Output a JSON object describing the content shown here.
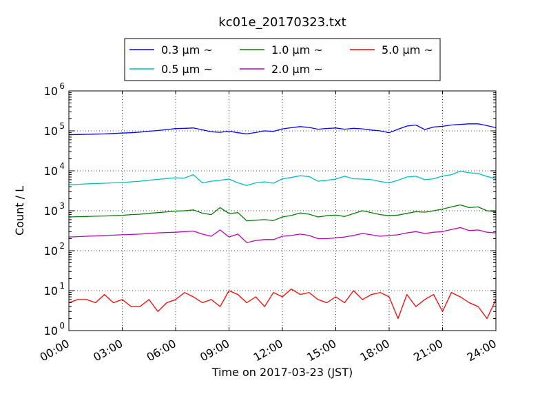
{
  "chart_data": {
    "type": "line",
    "title": "kc01e_20170323.txt",
    "xlabel": "Time on 2017-03-23 (JST)",
    "ylabel": "Count / L",
    "xlim": [
      "00:00",
      "24:00"
    ],
    "ylim": [
      1,
      1000000
    ],
    "yscale": "log",
    "grid": true,
    "legend_position": "top-center",
    "x_tick_labels": [
      "00:00",
      "03:00",
      "06:00",
      "09:00",
      "12:00",
      "15:00",
      "18:00",
      "21:00",
      "24:00"
    ],
    "y_tick_labels": [
      {
        "base": "10",
        "exp": "0"
      },
      {
        "base": "10",
        "exp": "1"
      },
      {
        "base": "10",
        "exp": "2"
      },
      {
        "base": "10",
        "exp": "3"
      },
      {
        "base": "10",
        "exp": "4"
      },
      {
        "base": "10",
        "exp": "5"
      },
      {
        "base": "10",
        "exp": "6"
      }
    ],
    "x_hours": [
      0,
      0.5,
      1,
      1.5,
      2,
      2.5,
      3,
      3.5,
      4,
      4.5,
      5,
      5.5,
      6,
      6.5,
      7,
      7.5,
      8,
      8.5,
      9,
      9.5,
      10,
      10.5,
      11,
      11.5,
      12,
      12.5,
      13,
      13.5,
      14,
      14.5,
      15,
      15.5,
      16,
      16.5,
      17,
      17.5,
      18,
      18.5,
      19,
      19.5,
      20,
      20.5,
      21,
      21.5,
      22,
      22.5,
      23,
      23.5,
      24
    ],
    "series": [
      {
        "name": "0.3 μm ~",
        "color": "#0000ff",
        "values": [
          80000,
          81000,
          82000,
          83000,
          84000,
          86000,
          88000,
          90000,
          93000,
          98000,
          102000,
          108000,
          114000,
          116000,
          118000,
          106000,
          95000,
          92000,
          98000,
          90000,
          84000,
          91000,
          100000,
          97000,
          112000,
          120000,
          128000,
          122000,
          110000,
          115000,
          118000,
          110000,
          116000,
          112000,
          105000,
          100000,
          90000,
          110000,
          132000,
          140000,
          108000,
          125000,
          130000,
          140000,
          145000,
          150000,
          150000,
          135000,
          120000
        ]
      },
      {
        "name": "0.5 μm ~",
        "color": "#00bfbf",
        "values": [
          4500,
          4600,
          4700,
          4800,
          4900,
          5000,
          5100,
          5300,
          5500,
          5800,
          6100,
          6400,
          6700,
          6600,
          8000,
          5000,
          5500,
          5800,
          6200,
          5000,
          4300,
          5000,
          5300,
          4900,
          6300,
          6800,
          7500,
          7200,
          5500,
          5800,
          6200,
          7300,
          6300,
          6200,
          6000,
          5400,
          5000,
          5800,
          7000,
          7300,
          6000,
          6300,
          7400,
          8000,
          9800,
          8900,
          8600,
          7200,
          6400
        ]
      },
      {
        "name": "1.0 μm ~",
        "color": "#008000",
        "values": [
          700,
          710,
          720,
          730,
          740,
          750,
          770,
          800,
          820,
          860,
          900,
          940,
          980,
          1000,
          1050,
          870,
          800,
          1200,
          850,
          900,
          560,
          580,
          600,
          570,
          700,
          760,
          880,
          820,
          700,
          750,
          780,
          720,
          850,
          1000,
          900,
          800,
          750,
          780,
          860,
          950,
          920,
          1000,
          1100,
          1250,
          1400,
          1200,
          1250,
          1000,
          950
        ]
      },
      {
        "name": "2.0 μm ~",
        "color": "#bf00bf",
        "values": [
          220,
          225,
          230,
          235,
          240,
          245,
          250,
          255,
          260,
          270,
          280,
          285,
          290,
          300,
          310,
          260,
          230,
          330,
          220,
          260,
          160,
          180,
          190,
          190,
          230,
          240,
          260,
          240,
          200,
          200,
          210,
          220,
          240,
          270,
          250,
          230,
          240,
          250,
          280,
          300,
          270,
          290,
          300,
          340,
          380,
          320,
          330,
          290,
          280
        ]
      },
      {
        "name": "5.0 μm ~",
        "color": "#ff0000",
        "values": [
          5,
          6,
          6,
          5,
          8,
          5,
          6,
          4,
          4,
          6,
          3,
          5,
          6,
          9,
          7,
          5,
          6,
          4,
          10,
          8,
          5,
          7,
          4,
          9,
          7,
          11,
          8,
          9,
          6,
          5,
          7,
          5,
          10,
          6,
          8,
          9,
          7,
          2,
          8,
          4,
          6,
          8,
          3,
          9,
          7,
          5,
          4,
          2,
          6
        ]
      }
    ]
  }
}
